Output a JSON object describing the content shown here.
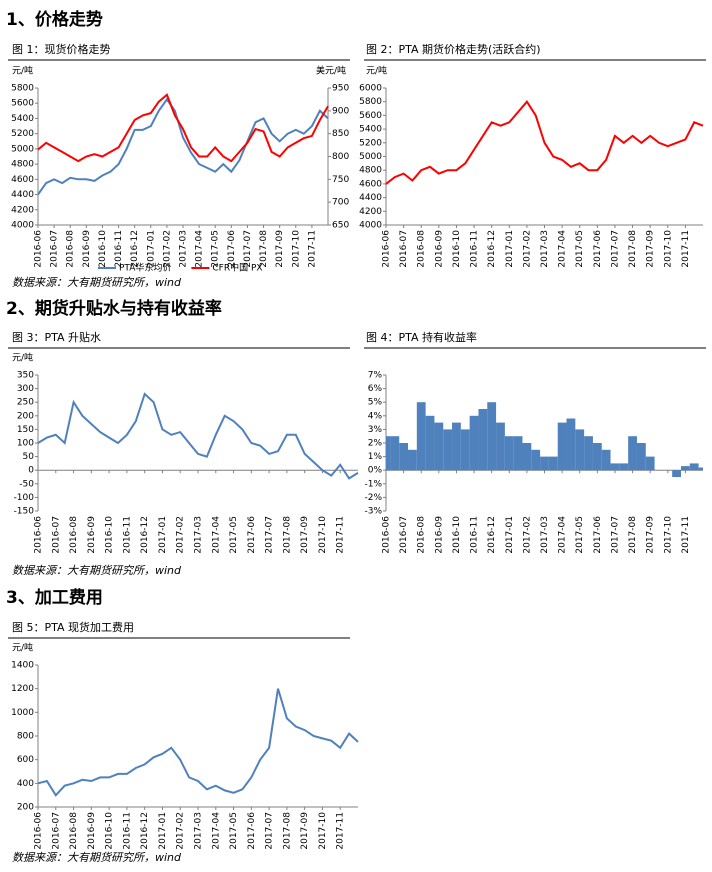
{
  "sections": [
    {
      "heading": "1、价格走势",
      "source": "数据来源：大有期货研究所，wind"
    },
    {
      "heading": "2、期货升贴水与持有收益率",
      "source": "数据来源：大有期货研究所，wind"
    },
    {
      "heading": "3、加工费用",
      "source": "数据来源：大有期货研究所，wind"
    }
  ],
  "chart_data": [
    {
      "type": "line",
      "title": "图 1：现货价格走势",
      "ylabel": "元/吨",
      "y2label": "美元/吨",
      "categories": [
        "2016-06",
        null,
        "2016-07",
        null,
        "2016-08",
        null,
        "2016-09",
        null,
        "2016-10",
        null,
        "2016-11",
        null,
        "2016-12",
        null,
        "2017-01",
        null,
        "2017-02",
        null,
        "2017-03",
        null,
        "2017-04",
        null,
        "2017-05",
        null,
        "2017-06",
        null,
        "2017-07",
        null,
        "2017-08",
        null,
        "2017-09",
        null,
        "2017-10",
        null,
        "2017-11",
        null,
        null
      ],
      "series": [
        {
          "name": "PTA华东均价",
          "color": "#4f81bd",
          "values": [
            4400,
            4550,
            4600,
            4550,
            4620,
            4600,
            4600,
            4580,
            4650,
            4700,
            4800,
            5000,
            5250,
            5250,
            5300,
            5500,
            5650,
            5500,
            5150,
            4950,
            4800,
            4750,
            4700,
            4800,
            4700,
            4850,
            5100,
            5350,
            5400,
            5200,
            5100,
            5200,
            5250,
            5200,
            5300,
            5500,
            5400
          ]
        },
        {
          "name": "CFR中国 PX",
          "color": "#ff0000",
          "axis": "y2",
          "values": [
            815,
            830,
            820,
            810,
            800,
            790,
            800,
            805,
            800,
            810,
            820,
            850,
            880,
            890,
            895,
            920,
            935,
            890,
            860,
            820,
            800,
            800,
            820,
            800,
            790,
            810,
            830,
            860,
            855,
            810,
            800,
            820,
            830,
            840,
            845,
            880,
            910
          ]
        }
      ],
      "ylim": [
        4000,
        5800
      ],
      "yticks": [
        4000,
        4200,
        4400,
        4600,
        4800,
        5000,
        5200,
        5400,
        5600,
        5800
      ],
      "y2lim": [
        650,
        950
      ],
      "y2ticks": [
        650,
        700,
        750,
        800,
        850,
        900,
        950
      ],
      "legend": "bottom"
    },
    {
      "type": "line",
      "title": "图 2：PTA 期货价格走势(活跃合约)",
      "ylabel": "元/吨",
      "categories": [
        "2016-06",
        null,
        "2016-07",
        null,
        "2016-08",
        null,
        "2016-09",
        null,
        "2016-10",
        null,
        "2016-11",
        null,
        "2016-12",
        null,
        "2017-01",
        null,
        "2017-02",
        null,
        "2017-03",
        null,
        "2017-04",
        null,
        "2017-05",
        null,
        "2017-06",
        null,
        "2017-07",
        null,
        "2017-08",
        null,
        "2017-09",
        null,
        "2017-10",
        null,
        "2017-11",
        null,
        null
      ],
      "color": "#ff0000",
      "values": [
        4600,
        4700,
        4750,
        4650,
        4800,
        4850,
        4750,
        4800,
        4800,
        4900,
        5100,
        5300,
        5500,
        5450,
        5500,
        5650,
        5800,
        5600,
        5200,
        5000,
        4950,
        4850,
        4900,
        4800,
        4800,
        4950,
        5300,
        5200,
        5300,
        5200,
        5300,
        5200,
        5150,
        5200,
        5250,
        5500,
        5450
      ],
      "ylim": [
        4000,
        6000
      ],
      "yticks": [
        4000,
        4200,
        4400,
        4600,
        4800,
        5000,
        5200,
        5400,
        5600,
        5800,
        6000
      ]
    },
    {
      "type": "line",
      "title": "图 3：PTA 升贴水",
      "ylabel": "元/吨",
      "categories": [
        "2016-06",
        null,
        "2016-07",
        null,
        "2016-08",
        null,
        "2016-09",
        null,
        "2016-10",
        null,
        "2016-11",
        null,
        "2016-12",
        null,
        "2017-01",
        null,
        "2017-02",
        null,
        "2017-03",
        null,
        "2017-04",
        null,
        "2017-05",
        null,
        "2017-06",
        null,
        "2017-07",
        null,
        "2017-08",
        null,
        "2017-09",
        null,
        "2017-10",
        null,
        "2017-11",
        null,
        null
      ],
      "color": "#4f81bd",
      "values": [
        100,
        120,
        130,
        100,
        250,
        200,
        170,
        140,
        120,
        100,
        130,
        180,
        280,
        250,
        150,
        130,
        140,
        100,
        60,
        50,
        130,
        200,
        180,
        150,
        100,
        90,
        60,
        70,
        130,
        130,
        60,
        30,
        0,
        -20,
        20,
        -30,
        -10
      ],
      "ylim": [
        -150,
        350
      ],
      "yticks": [
        -150,
        -100,
        -50,
        0,
        50,
        100,
        150,
        200,
        250,
        300,
        350
      ]
    },
    {
      "type": "bar",
      "title": "图 4：PTA 持有收益率",
      "categories": [
        "2016-06",
        null,
        "2016-07",
        null,
        "2016-08",
        null,
        "2016-09",
        null,
        "2016-10",
        null,
        "2016-11",
        null,
        "2016-12",
        null,
        "2017-01",
        null,
        "2017-02",
        null,
        "2017-03",
        null,
        "2017-04",
        null,
        "2017-05",
        null,
        "2017-06",
        null,
        "2017-07",
        null,
        "2017-08",
        null,
        "2017-09",
        null,
        "2017-10",
        null,
        "2017-11",
        null,
        null
      ],
      "color": "#4f81bd",
      "values": [
        2.5,
        2.5,
        2.0,
        1.5,
        5.0,
        4.0,
        3.5,
        3.0,
        3.5,
        3.0,
        4.0,
        4.5,
        5.0,
        3.5,
        2.5,
        2.5,
        2.0,
        1.5,
        1.0,
        1.0,
        3.5,
        3.8,
        3.0,
        2.5,
        2.0,
        1.5,
        0.5,
        0.5,
        2.5,
        2.0,
        1.0,
        0.0,
        0.0,
        -0.5,
        0.3,
        0.5,
        0.2
      ],
      "ylim": [
        -3,
        7
      ],
      "yticks": [
        {
          "value": -3,
          "label": "-3%"
        },
        {
          "value": -2,
          "label": "-2%"
        },
        {
          "value": -1,
          "label": "-1%"
        },
        {
          "value": 0,
          "label": "0%"
        },
        {
          "value": 1,
          "label": "1%"
        },
        {
          "value": 2,
          "label": "2%"
        },
        {
          "value": 3,
          "label": "3%"
        },
        {
          "value": 4,
          "label": "4%"
        },
        {
          "value": 5,
          "label": "5%"
        },
        {
          "value": 6,
          "label": "6%"
        },
        {
          "value": 7,
          "label": "7%"
        }
      ]
    },
    {
      "type": "line",
      "title": "图 5：PTA 现货加工费用",
      "ylabel": "元/吨",
      "categories": [
        "2016-06",
        null,
        "2016-07",
        null,
        "2016-08",
        null,
        "2016-09",
        null,
        "2016-10",
        null,
        "2016-11",
        null,
        "2016-12",
        null,
        "2017-01",
        null,
        "2017-02",
        null,
        "2017-03",
        null,
        "2017-04",
        null,
        "2017-05",
        null,
        "2017-06",
        null,
        "2017-07",
        null,
        "2017-08",
        null,
        "2017-09",
        null,
        "2017-10",
        null,
        "2017-11",
        null,
        null
      ],
      "color": "#4f81bd",
      "values": [
        400,
        420,
        300,
        380,
        400,
        430,
        420,
        450,
        450,
        480,
        480,
        530,
        560,
        620,
        650,
        700,
        600,
        450,
        420,
        350,
        380,
        340,
        320,
        350,
        450,
        600,
        700,
        1200,
        950,
        880,
        850,
        800,
        780,
        760,
        700,
        820,
        750
      ],
      "ylim": [
        200,
        1400
      ],
      "yticks": [
        200,
        400,
        600,
        800,
        1000,
        1200,
        1400
      ]
    }
  ]
}
